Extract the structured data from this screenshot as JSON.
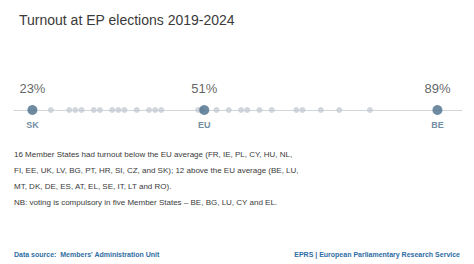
{
  "chart_data": {
    "type": "strip",
    "title": "Turnout at EP elections 2019-2024",
    "categories": [
      "SK",
      null,
      null,
      null,
      null,
      null,
      null,
      null,
      null,
      null,
      null,
      null,
      null,
      null,
      null,
      null,
      "EU",
      null,
      null,
      null,
      null,
      null,
      null,
      null,
      null,
      null,
      null,
      null,
      "BE"
    ],
    "values": [
      23,
      26,
      29,
      30,
      31,
      33,
      34,
      36,
      37,
      38,
      40,
      42,
      43,
      44,
      50,
      50.5,
      51,
      53,
      55,
      57,
      58,
      60,
      62,
      66,
      67,
      70,
      73,
      78,
      89
    ],
    "value_labels": [
      "23%",
      null,
      null,
      null,
      null,
      null,
      null,
      null,
      null,
      null,
      null,
      null,
      null,
      null,
      null,
      null,
      "51%",
      null,
      null,
      null,
      null,
      null,
      null,
      null,
      null,
      null,
      null,
      null,
      "89%"
    ],
    "data_labels": true,
    "colors": [
      "#4a6e8a",
      "#c5ccd4",
      "#c5ccd4",
      "#c5ccd4",
      "#c5ccd4",
      "#c5ccd4",
      "#c5ccd4",
      "#c5ccd4",
      "#c5ccd4",
      "#c5ccd4",
      "#c5ccd4",
      "#c5ccd4",
      "#c5ccd4",
      "#c5ccd4",
      "#c5ccd4",
      "#c5ccd4",
      "#4a6e8a",
      "#c5ccd4",
      "#c5ccd4",
      "#c5ccd4",
      "#c5ccd4",
      "#c5ccd4",
      "#c5ccd4",
      "#c5ccd4",
      "#c5ccd4",
      "#c5ccd4",
      "#c5ccd4",
      "#c5ccd4",
      "#4a6e8a"
    ],
    "xlim": [
      20,
      93
    ],
    "tick_labels": false,
    "grid": false,
    "annotations": [
      "16 Member States had turnout below the EU average (FR, IE, PL, CY, HU, NL,",
      "FI, EE, UK, LV, BG, PT, HR, SI, CZ, and SK); 12 above the EU average (BE, LU,",
      "MT, DK, DE, ES, AT, EL, SE, IT, LT and RO).",
      "NB: voting is compulsory in five Member States – BE, BG, LU, CY and EL.",
      "Data source:  Members' Administration Unit",
      "EPRS | European Parliamentary Research Service"
    ]
  }
}
